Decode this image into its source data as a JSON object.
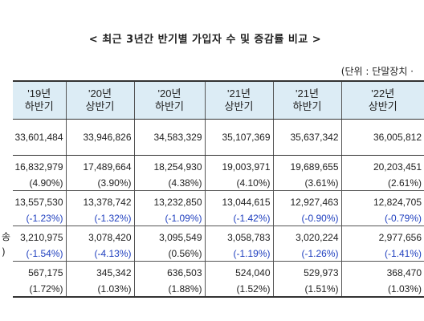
{
  "title": "< 최근 3년간 반기별 가입자 수 및 증감률 비교 >",
  "unit": "(단위 : 단말장치 ·",
  "headers": [
    {
      "line1": "'19년",
      "line2": "하반기"
    },
    {
      "line1": "'20년",
      "line2": "상반기"
    },
    {
      "line1": "'20년",
      "line2": "하반기"
    },
    {
      "line1": "'21년",
      "line2": "상반기"
    },
    {
      "line1": "'21년",
      "line2": "하반기"
    },
    {
      "line1": "'22년",
      "line2": "상반기"
    }
  ],
  "row_labels": {
    "partial_label": "송",
    "partial_close": ")"
  },
  "rows": {
    "total": [
      "33,601,484",
      "33,946,826",
      "34,583,329",
      "35,107,369",
      "35,637,342",
      "36,005,812"
    ],
    "r1_values": [
      "16,832,979",
      "17,489,664",
      "18,254,930",
      "19,003,971",
      "19,689,655",
      "20,203,451"
    ],
    "r1_rates": [
      "(4.90%)",
      "(3.90%)",
      "(4.38%)",
      "(4.10%)",
      "(3.61%)",
      "(2.61%)"
    ],
    "r2_values": [
      "13,557,530",
      "13,378,742",
      "13,232,850",
      "13,044,615",
      "12,927,463",
      "12,824,705"
    ],
    "r2_rates": [
      "(-1.23%)",
      "(-1.32%)",
      "(-1.09%)",
      "(-1.42%)",
      "(-0.90%)",
      "(-0.79%)"
    ],
    "r3_values": [
      "3,210,975",
      "3,078,420",
      "3,095,549",
      "3,058,783",
      "3,020,224",
      "2,977,656"
    ],
    "r3_rates": [
      "(-1.54%)",
      "(-4.13%)",
      "(0.56%)",
      "(-1.19%)",
      "(-1.26%)",
      "(-1.41%)"
    ],
    "r4_values": [
      "567,175",
      "345,342",
      "636,503",
      "524,040",
      "529,973",
      "368,470"
    ],
    "r4_rates": [
      "(1.72%)",
      "(1.03%)",
      "(1.88%)",
      "(1.52%)",
      "(1.51%)",
      "(1.03%)"
    ]
  },
  "colors": {
    "header_bg": "#dcecf5",
    "negative_rate": "#1f3fbf"
  }
}
